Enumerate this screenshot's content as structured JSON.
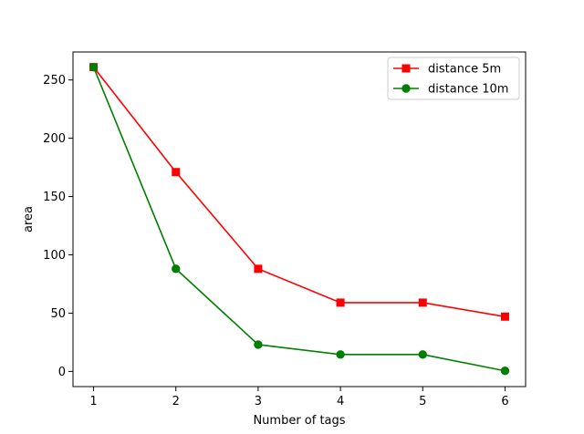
{
  "chart_data": {
    "type": "line",
    "title": "",
    "xlabel": "Number of tags",
    "ylabel": "area",
    "x": [
      1,
      2,
      3,
      4,
      5,
      6
    ],
    "xticks": [
      "1",
      "2",
      "3",
      "4",
      "5",
      "6"
    ],
    "yticks": [
      "0",
      "50",
      "100",
      "150",
      "200",
      "250"
    ],
    "xlim": [
      0.75,
      6.25
    ],
    "ylim": [
      -13,
      274
    ],
    "grid": false,
    "legend_position": "top-right",
    "series": [
      {
        "name": "distance 5m",
        "color": "#ff0000",
        "marker": "square",
        "values": [
          261,
          171,
          88,
          59,
          59,
          47
        ]
      },
      {
        "name": "distance 10m",
        "color": "#008000",
        "marker": "circle",
        "values": [
          261,
          88,
          23,
          14.5,
          14.5,
          0.5
        ]
      }
    ]
  }
}
